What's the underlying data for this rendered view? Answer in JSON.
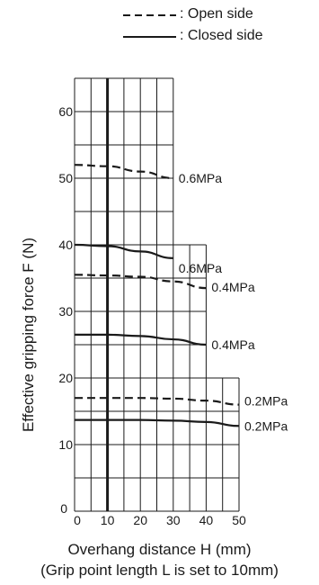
{
  "chart_data": {
    "type": "line",
    "xlabel": "Overhang distance H  (mm)",
    "note": "(Grip point length L is set to 10mm)",
    "ylabel": "Effective gripping force  F (N)",
    "xlim": [
      0,
      50
    ],
    "ylim": [
      0,
      65
    ],
    "x_ticks": [
      "0",
      "10",
      "20",
      "30",
      "40",
      "50"
    ],
    "y_ticks": [
      "0",
      "10",
      "20",
      "30",
      "40",
      "50",
      "60"
    ],
    "grid": true,
    "emphasized_x": 10,
    "legend": [
      {
        "style": "dashed",
        "label": ": Open side"
      },
      {
        "style": "solid",
        "label": ": Closed side"
      }
    ],
    "series": [
      {
        "label": "0.6MPa",
        "side": "open",
        "style": "dashed",
        "xmax": 30,
        "points": [
          [
            0,
            52
          ],
          [
            10,
            51.8
          ],
          [
            20,
            51
          ],
          [
            30,
            50
          ]
        ]
      },
      {
        "label": "0.6MPa",
        "side": "closed",
        "style": "solid",
        "xmax": 30,
        "points": [
          [
            0,
            40
          ],
          [
            10,
            39.8
          ],
          [
            20,
            39
          ],
          [
            30,
            38
          ]
        ]
      },
      {
        "label": "0.4MPa",
        "side": "open",
        "style": "dashed",
        "xmax": 40,
        "points": [
          [
            0,
            35.5
          ],
          [
            10,
            35.4
          ],
          [
            20,
            35.2
          ],
          [
            30,
            34.5
          ],
          [
            40,
            33.5
          ]
        ]
      },
      {
        "label": "0.4MPa",
        "side": "closed",
        "style": "solid",
        "xmax": 40,
        "points": [
          [
            0,
            26.5
          ],
          [
            10,
            26.5
          ],
          [
            20,
            26.3
          ],
          [
            30,
            25.8
          ],
          [
            40,
            25
          ]
        ]
      },
      {
        "label": "0.2MPa",
        "side": "open",
        "style": "dashed",
        "xmax": 50,
        "points": [
          [
            0,
            17
          ],
          [
            10,
            17
          ],
          [
            20,
            17
          ],
          [
            30,
            16.9
          ],
          [
            40,
            16.6
          ],
          [
            50,
            16
          ]
        ]
      },
      {
        "label": "0.2MPa",
        "side": "closed",
        "style": "solid",
        "xmax": 50,
        "points": [
          [
            0,
            13.7
          ],
          [
            10,
            13.7
          ],
          [
            20,
            13.7
          ],
          [
            30,
            13.6
          ],
          [
            40,
            13.4
          ],
          [
            50,
            12.8
          ]
        ]
      }
    ]
  }
}
